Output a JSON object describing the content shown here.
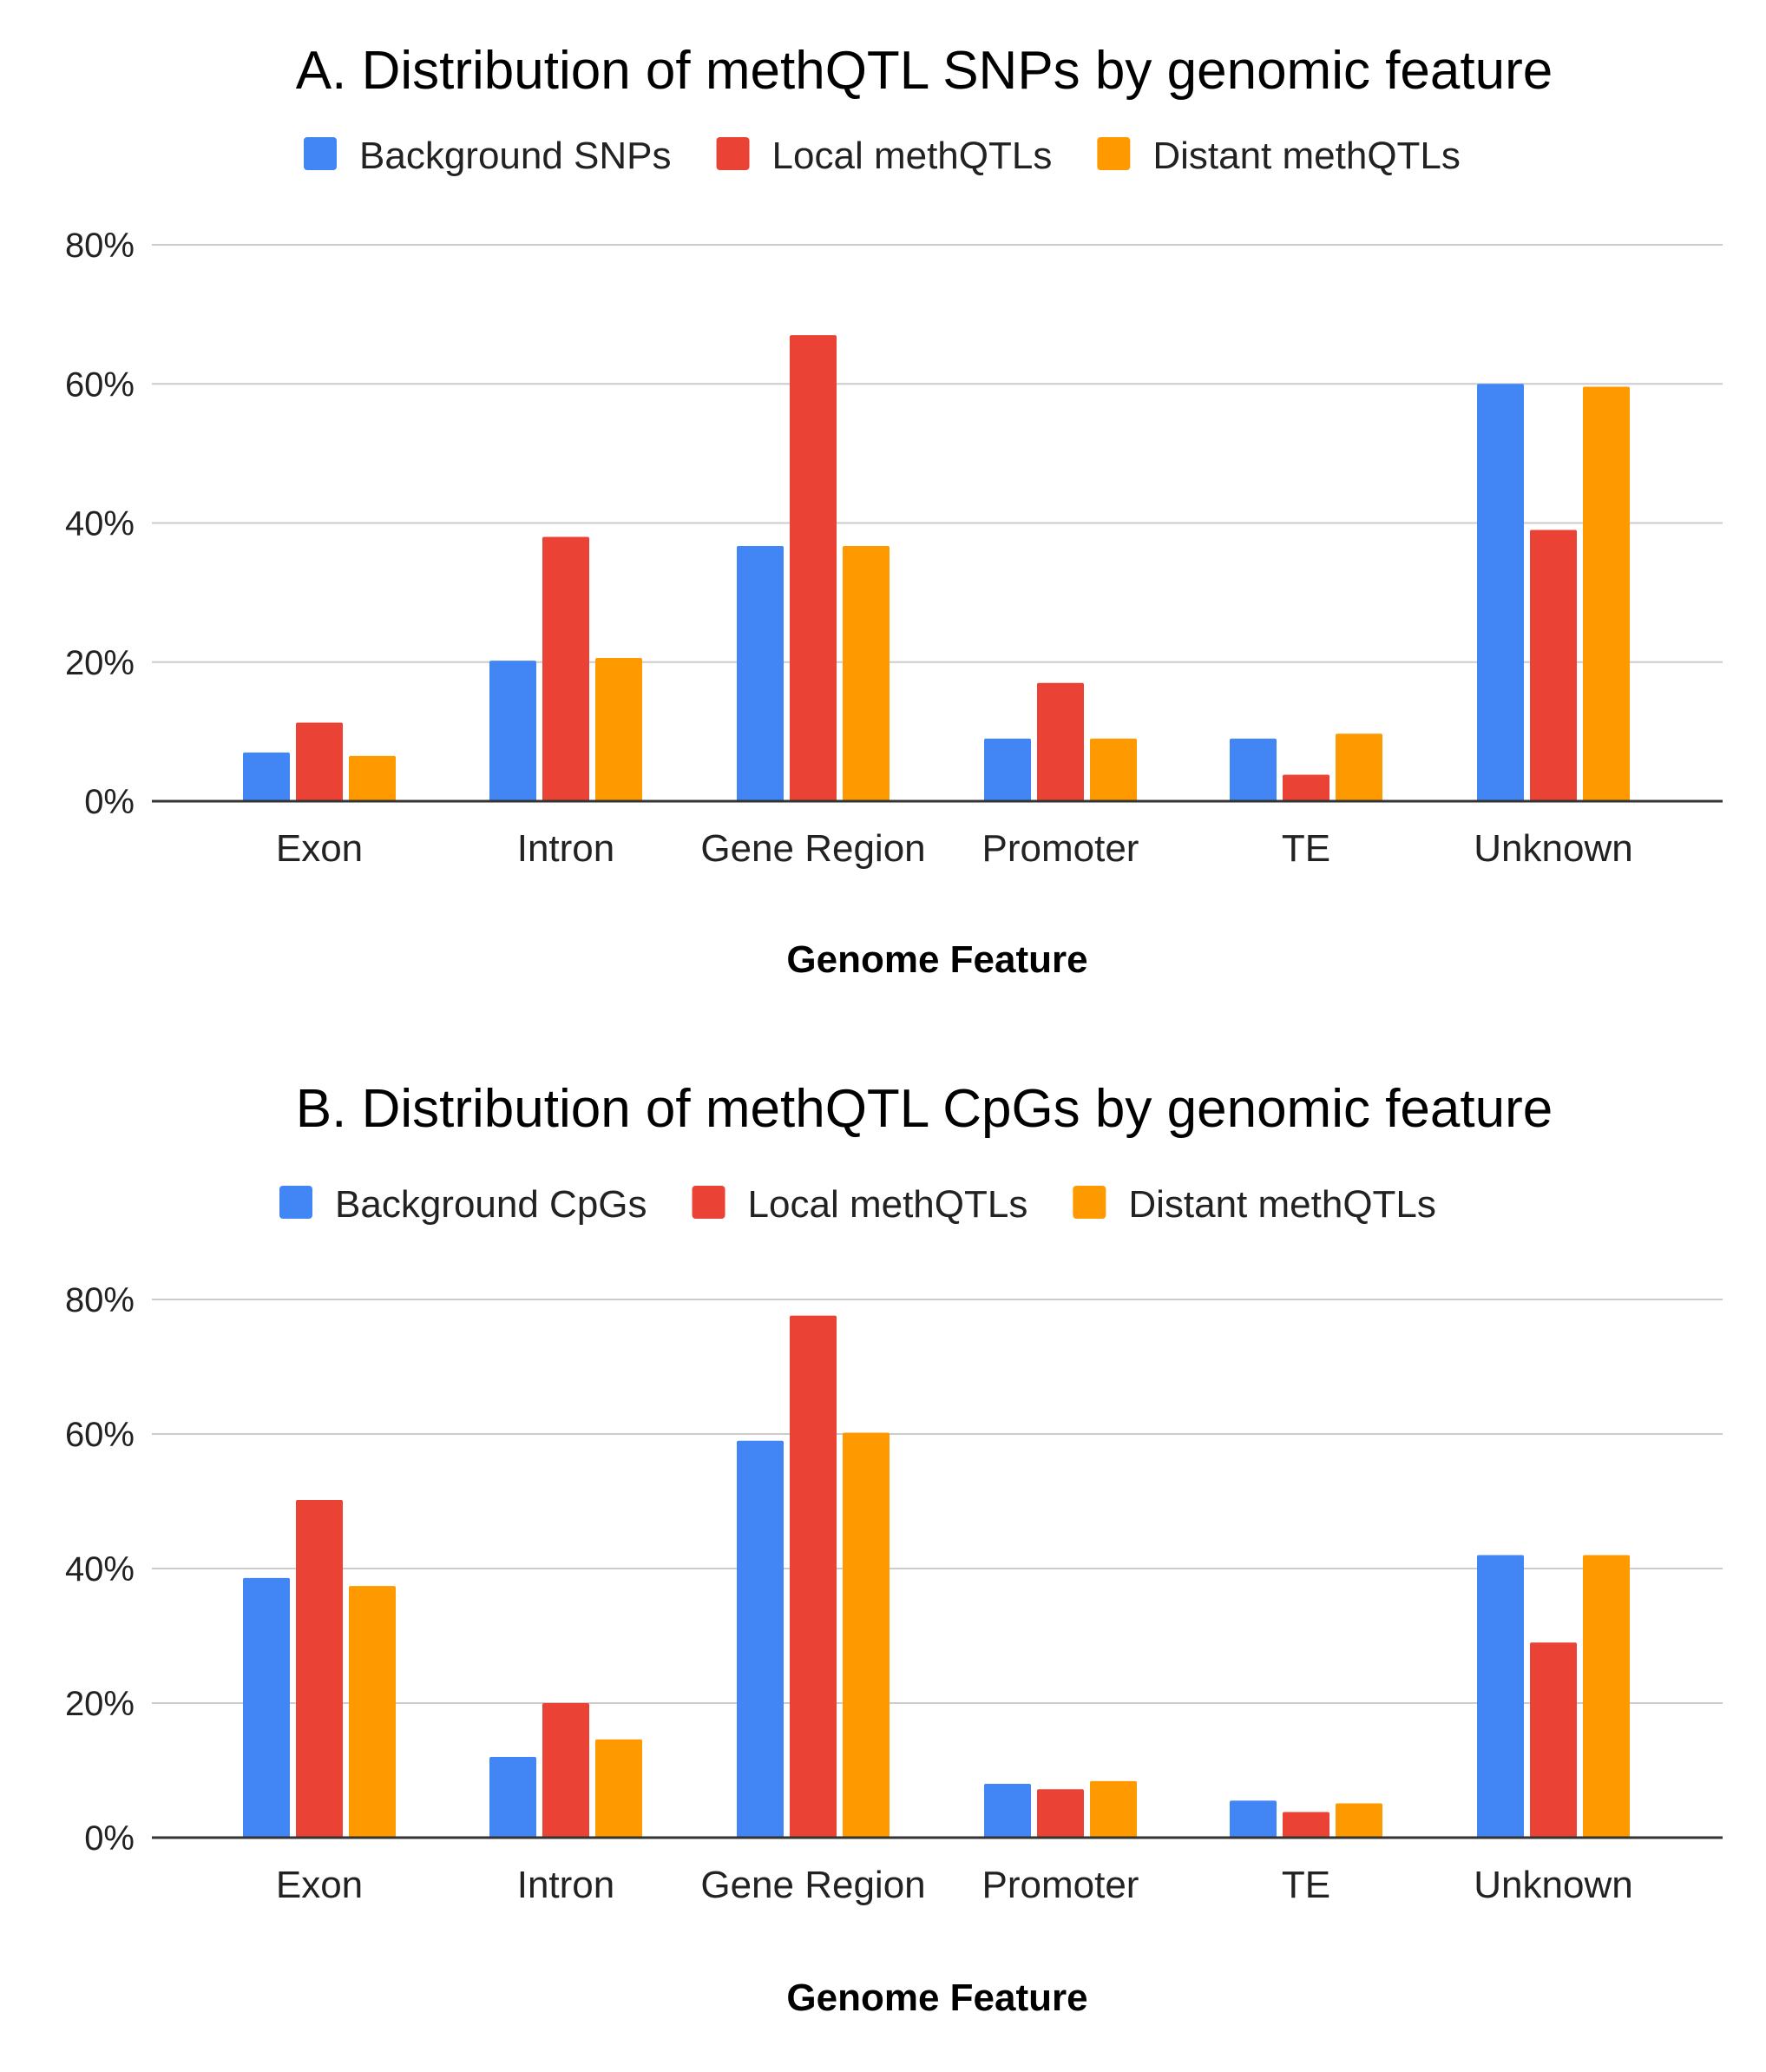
{
  "colors": {
    "background": "#4285F4",
    "local": "#EA4335",
    "distant": "#FF9900"
  },
  "chart_data": [
    {
      "type": "bar",
      "title": "A. Distribution of methQTL SNPs by genomic feature",
      "xlabel": "Genome Feature",
      "ylabel": "",
      "categories": [
        "Exon",
        "Intron",
        "Gene Region",
        "Promoter",
        "TE",
        "Unknown"
      ],
      "ylim": [
        0,
        80
      ],
      "yticks": [
        "0%",
        "20%",
        "40%",
        "60%",
        "80%"
      ],
      "grid": true,
      "legend_position": "top",
      "series": [
        {
          "name": "Background SNPs",
          "color": "#4285F4",
          "values": [
            7,
            20.2,
            36.7,
            9,
            9,
            60
          ]
        },
        {
          "name": "Local methQTLs",
          "color": "#EA4335",
          "values": [
            11.3,
            38,
            67,
            17,
            3.8,
            39
          ]
        },
        {
          "name": "Distant methQTLs",
          "color": "#FF9900",
          "values": [
            6.5,
            20.6,
            36.7,
            9,
            9.7,
            59.6
          ]
        }
      ]
    },
    {
      "type": "bar",
      "title": "B. Distribution of methQTL CpGs by genomic feature",
      "xlabel": "Genome Feature",
      "ylabel": "",
      "categories": [
        "Exon",
        "Intron",
        "Gene Region",
        "Promoter",
        "TE",
        "Unknown"
      ],
      "ylim": [
        0,
        80
      ],
      "yticks": [
        "0%",
        "20%",
        "40%",
        "60%",
        "80%"
      ],
      "grid": true,
      "legend_position": "top",
      "series": [
        {
          "name": "Background CpGs",
          "color": "#4285F4",
          "values": [
            38.6,
            12,
            59,
            8,
            5.5,
            42
          ]
        },
        {
          "name": "Local methQTLs",
          "color": "#EA4335",
          "values": [
            50.2,
            20,
            77.6,
            7.2,
            3.8,
            29
          ]
        },
        {
          "name": "Distant methQTLs",
          "color": "#FF9900",
          "values": [
            37.4,
            14.6,
            60.2,
            8.4,
            5.1,
            42
          ]
        }
      ]
    }
  ]
}
